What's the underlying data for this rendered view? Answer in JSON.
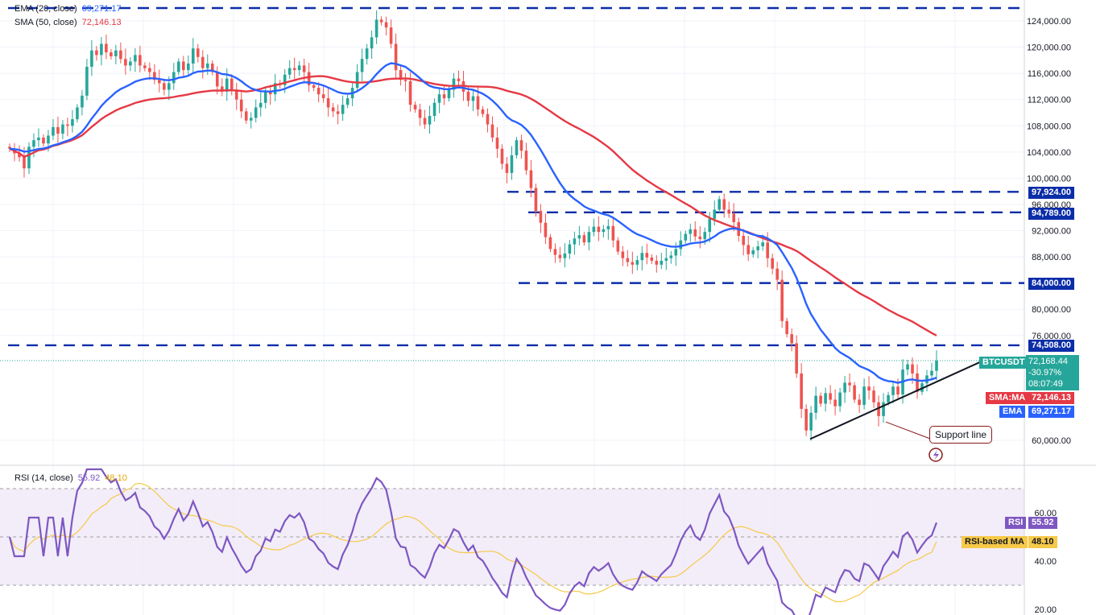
{
  "legend": {
    "ema_label": "EMA (20, close)",
    "ema_value": "69,271.17",
    "sma_label": "SMA (50, close)",
    "sma_value": "72,146.13",
    "rsi_label": "RSI (14, close)",
    "rsi_value": "55.92",
    "rsi_ma_value": "48.10"
  },
  "price_axis": {
    "ticks": [
      "124,000.00",
      "120,000.00",
      "116,000.00",
      "112,000.00",
      "108,000.00",
      "104,000.00",
      "100,000.00",
      "96,000.00",
      "92,000.00",
      "88,000.00",
      "84,000.00",
      "80,000.00",
      "76,000.00",
      "60,000.00"
    ]
  },
  "rsi_axis": {
    "ticks": [
      "60.00",
      "40.00",
      "20.00"
    ]
  },
  "levels": [
    {
      "value": "97,924.00"
    },
    {
      "value": "94,789.00"
    },
    {
      "value": "84,000.00"
    },
    {
      "value": "74,508.00"
    }
  ],
  "last_price": {
    "symbol": "BTCUSDT",
    "price": "72,168.44",
    "change": "-30.97%",
    "countdown": "08:07:49"
  },
  "ma_tags": {
    "sma_name": "SMA:MA",
    "sma_value": "72,146.13",
    "ema_name": "EMA",
    "ema_value": "69,271.17"
  },
  "rsi_tags": {
    "rsi_name": "RSI",
    "rsi_value": "55.92",
    "ma_name": "RSI-based MA",
    "ma_value": "48.10"
  },
  "annotation": {
    "support_label": "Support line"
  },
  "colors": {
    "up": "#26a69a",
    "down": "#ef5350",
    "ema": "#2962ff",
    "sma": "#e53945",
    "rsi": "#7e57c2",
    "rsi_ma": "#f7c948",
    "level": "#0b2da8",
    "trend": "#131722",
    "callout": "#8b1a1a"
  },
  "chart_data": {
    "type": "candlestick",
    "symbol": "BTCUSDT",
    "price_range": [
      56000,
      126000
    ],
    "horizontal_levels": [
      97924,
      94789,
      84000,
      74508
    ],
    "trendline": {
      "from": 60200,
      "to": 69300
    },
    "closes": [
      104500,
      103800,
      103200,
      101500,
      104800,
      105800,
      106200,
      105300,
      106500,
      107800,
      106800,
      108200,
      108000,
      109000,
      110800,
      112600,
      117000,
      119500,
      118800,
      120500,
      119200,
      118600,
      119500,
      118200,
      117200,
      117800,
      118800,
      117200,
      116800,
      116200,
      115000,
      114500,
      113500,
      114500,
      116200,
      117800,
      116500,
      117500,
      119800,
      118500,
      116800,
      117500,
      116200,
      114000,
      113200,
      115200,
      113500,
      112000,
      110200,
      108800,
      109200,
      110800,
      111500,
      113200,
      112800,
      114500,
      114200,
      115800,
      116800,
      116500,
      117200,
      116200,
      114200,
      113800,
      112800,
      112200,
      110800,
      110200,
      109800,
      111200,
      112200,
      113800,
      116200,
      118200,
      119800,
      121500,
      124200,
      123800,
      123000,
      120500,
      116500,
      115000,
      114800,
      111200,
      110500,
      109200,
      108200,
      109500,
      111500,
      112800,
      112200,
      113500,
      115200,
      114800,
      113200,
      111800,
      112500,
      110500,
      109800,
      108200,
      106200,
      104500,
      102200,
      100800,
      103500,
      105800,
      104200,
      101200,
      98500,
      95000,
      93200,
      91000,
      89200,
      88300,
      87800,
      88500,
      89900,
      90800,
      91300,
      90200,
      91800,
      92600,
      91800,
      92200,
      92700,
      90500,
      88800,
      87800,
      87200,
      86800,
      87500,
      88600,
      87900,
      87400,
      86800,
      87400,
      87800,
      88200,
      89200,
      90500,
      91500,
      92200,
      91100,
      90700,
      91800,
      93800,
      95200,
      96800,
      95200,
      94600,
      93300,
      91200,
      89800,
      88400,
      89000,
      89600,
      90200,
      87800,
      86200,
      84500,
      78200,
      76200,
      74800,
      70200,
      64800,
      61500,
      64200,
      66800,
      65600,
      67200,
      66200,
      65200,
      67300,
      68800,
      68400,
      66200,
      65400,
      68200,
      67600,
      65800,
      63700,
      65800,
      66900,
      68200,
      67000,
      70800,
      71600,
      70200,
      67400,
      68700,
      69900,
      70600,
      72168
    ]
  }
}
